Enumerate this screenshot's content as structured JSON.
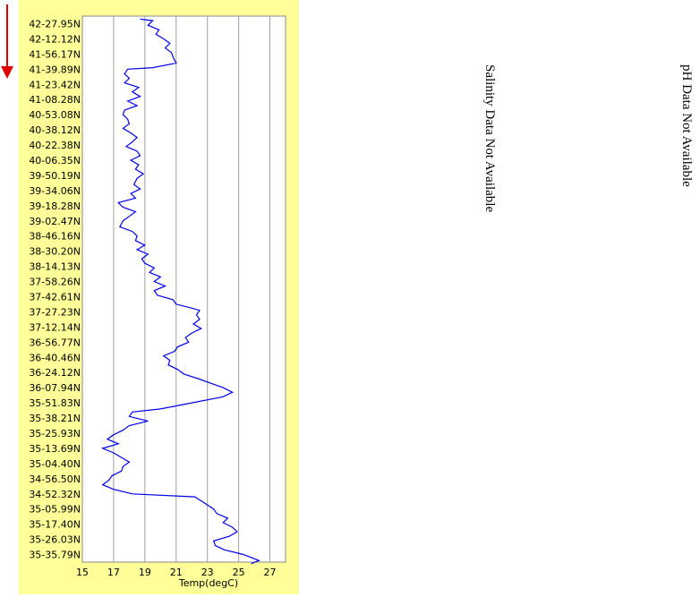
{
  "chart_data": {
    "type": "line",
    "xlabel": "Temp(degC)",
    "xlim": [
      15,
      28
    ],
    "x_ticks": [
      15,
      17,
      19,
      21,
      23,
      25,
      27
    ],
    "y_tick_labels": [
      "42-27.95N",
      "42-12.12N",
      "41-56.17N",
      "41-39.89N",
      "41-23.42N",
      "41-08.28N",
      "40-53.08N",
      "40-38.12N",
      "40-22.38N",
      "40-06.35N",
      "39-50.19N",
      "39-34.06N",
      "39-18.28N",
      "39-02.47N",
      "38-46.16N",
      "38-30.20N",
      "38-14.13N",
      "37-58.26N",
      "37-42.61N",
      "37-27.23N",
      "37-12.14N",
      "36-56.77N",
      "36-40.46N",
      "36-24.12N",
      "36-07.94N",
      "35-51.83N",
      "35-38.21N",
      "35-25.93N",
      "35-13.69N",
      "35-04.40N",
      "34-56.50N",
      "34-52.32N",
      "35-05.99N",
      "35-17.40N",
      "35-26.03N",
      "35-35.79N"
    ],
    "series": [
      {
        "color": "#0000ee",
        "points": [
          [
            18.7,
            -0.3
          ],
          [
            19.5,
            -0.2
          ],
          [
            19.2,
            0.1
          ],
          [
            19.9,
            0.4
          ],
          [
            19.7,
            0.7
          ],
          [
            20.2,
            1.0
          ],
          [
            20.6,
            1.3
          ],
          [
            20.3,
            1.6
          ],
          [
            20.7,
            1.9
          ],
          [
            20.8,
            2.2
          ],
          [
            21.0,
            2.6
          ],
          [
            19.5,
            2.9
          ],
          [
            17.9,
            3.0
          ],
          [
            17.7,
            3.3
          ],
          [
            18.0,
            3.6
          ],
          [
            17.7,
            3.9
          ],
          [
            18.6,
            4.2
          ],
          [
            18.2,
            4.5
          ],
          [
            18.7,
            4.8
          ],
          [
            17.9,
            5.1
          ],
          [
            18.5,
            5.4
          ],
          [
            17.7,
            5.7
          ],
          [
            17.6,
            6.0
          ],
          [
            17.9,
            6.3
          ],
          [
            18.0,
            6.6
          ],
          [
            17.6,
            6.9
          ],
          [
            18.1,
            7.2
          ],
          [
            18.5,
            7.5
          ],
          [
            18.2,
            7.8
          ],
          [
            17.8,
            8.1
          ],
          [
            18.5,
            8.4
          ],
          [
            18.7,
            8.7
          ],
          [
            18.1,
            9.0
          ],
          [
            18.6,
            9.3
          ],
          [
            18.4,
            9.6
          ],
          [
            18.9,
            9.9
          ],
          [
            18.5,
            10.2
          ],
          [
            18.3,
            10.6
          ],
          [
            18.7,
            10.9
          ],
          [
            18.1,
            11.2
          ],
          [
            18.4,
            11.5
          ],
          [
            17.3,
            11.8
          ],
          [
            17.6,
            12.1
          ],
          [
            18.4,
            12.4
          ],
          [
            18.0,
            12.7
          ],
          [
            17.6,
            13.0
          ],
          [
            17.4,
            13.4
          ],
          [
            18.2,
            13.7
          ],
          [
            18.5,
            14.0
          ],
          [
            18.4,
            14.3
          ],
          [
            19.0,
            14.6
          ],
          [
            18.5,
            14.9
          ],
          [
            19.2,
            15.2
          ],
          [
            18.8,
            15.5
          ],
          [
            19.0,
            15.8
          ],
          [
            19.6,
            16.1
          ],
          [
            19.3,
            16.4
          ],
          [
            20.0,
            16.7
          ],
          [
            19.6,
            17.0
          ],
          [
            20.3,
            17.3
          ],
          [
            19.6,
            17.6
          ],
          [
            19.8,
            17.9
          ],
          [
            20.8,
            18.2
          ],
          [
            21.0,
            18.5
          ],
          [
            21.8,
            18.7
          ],
          [
            22.5,
            18.9
          ],
          [
            22.3,
            19.2
          ],
          [
            22.5,
            19.5
          ],
          [
            22.1,
            19.8
          ],
          [
            22.6,
            20.1
          ],
          [
            22.0,
            20.4
          ],
          [
            21.6,
            20.7
          ],
          [
            21.8,
            21.0
          ],
          [
            21.1,
            21.3
          ],
          [
            20.9,
            21.6
          ],
          [
            20.2,
            21.9
          ],
          [
            20.6,
            22.2
          ],
          [
            20.5,
            22.5
          ],
          [
            21.1,
            22.8
          ],
          [
            21.5,
            23.1
          ],
          [
            22.4,
            23.4
          ],
          [
            23.2,
            23.7
          ],
          [
            24.0,
            24.0
          ],
          [
            24.6,
            24.3
          ],
          [
            24.0,
            24.6
          ],
          [
            22.0,
            25.0
          ],
          [
            20.0,
            25.4
          ],
          [
            18.2,
            25.6
          ],
          [
            18.0,
            25.9
          ],
          [
            19.2,
            26.2
          ],
          [
            18.0,
            26.5
          ],
          [
            17.6,
            26.8
          ],
          [
            17.0,
            27.1
          ],
          [
            16.6,
            27.4
          ],
          [
            17.3,
            27.7
          ],
          [
            16.3,
            28.0
          ],
          [
            17.0,
            28.3
          ],
          [
            17.5,
            28.6
          ],
          [
            18.0,
            28.9
          ],
          [
            17.6,
            29.2
          ],
          [
            17.5,
            29.5
          ],
          [
            16.9,
            29.8
          ],
          [
            16.7,
            30.1
          ],
          [
            16.3,
            30.4
          ],
          [
            17.0,
            30.7
          ],
          [
            18.2,
            31.0
          ],
          [
            22.2,
            31.2
          ],
          [
            22.8,
            31.6
          ],
          [
            23.4,
            32.0
          ],
          [
            23.6,
            32.3
          ],
          [
            24.3,
            32.6
          ],
          [
            24.0,
            32.9
          ],
          [
            24.6,
            33.2
          ],
          [
            24.9,
            33.5
          ],
          [
            24.4,
            33.8
          ],
          [
            23.4,
            34.1
          ],
          [
            23.5,
            34.4
          ],
          [
            24.1,
            34.7
          ],
          [
            25.3,
            35.0
          ],
          [
            26.3,
            35.4
          ],
          [
            25.8,
            35.6
          ]
        ]
      }
    ]
  },
  "salinity_text": "Salinity Data Not Available",
  "ph_text": "pH Data Not Available"
}
